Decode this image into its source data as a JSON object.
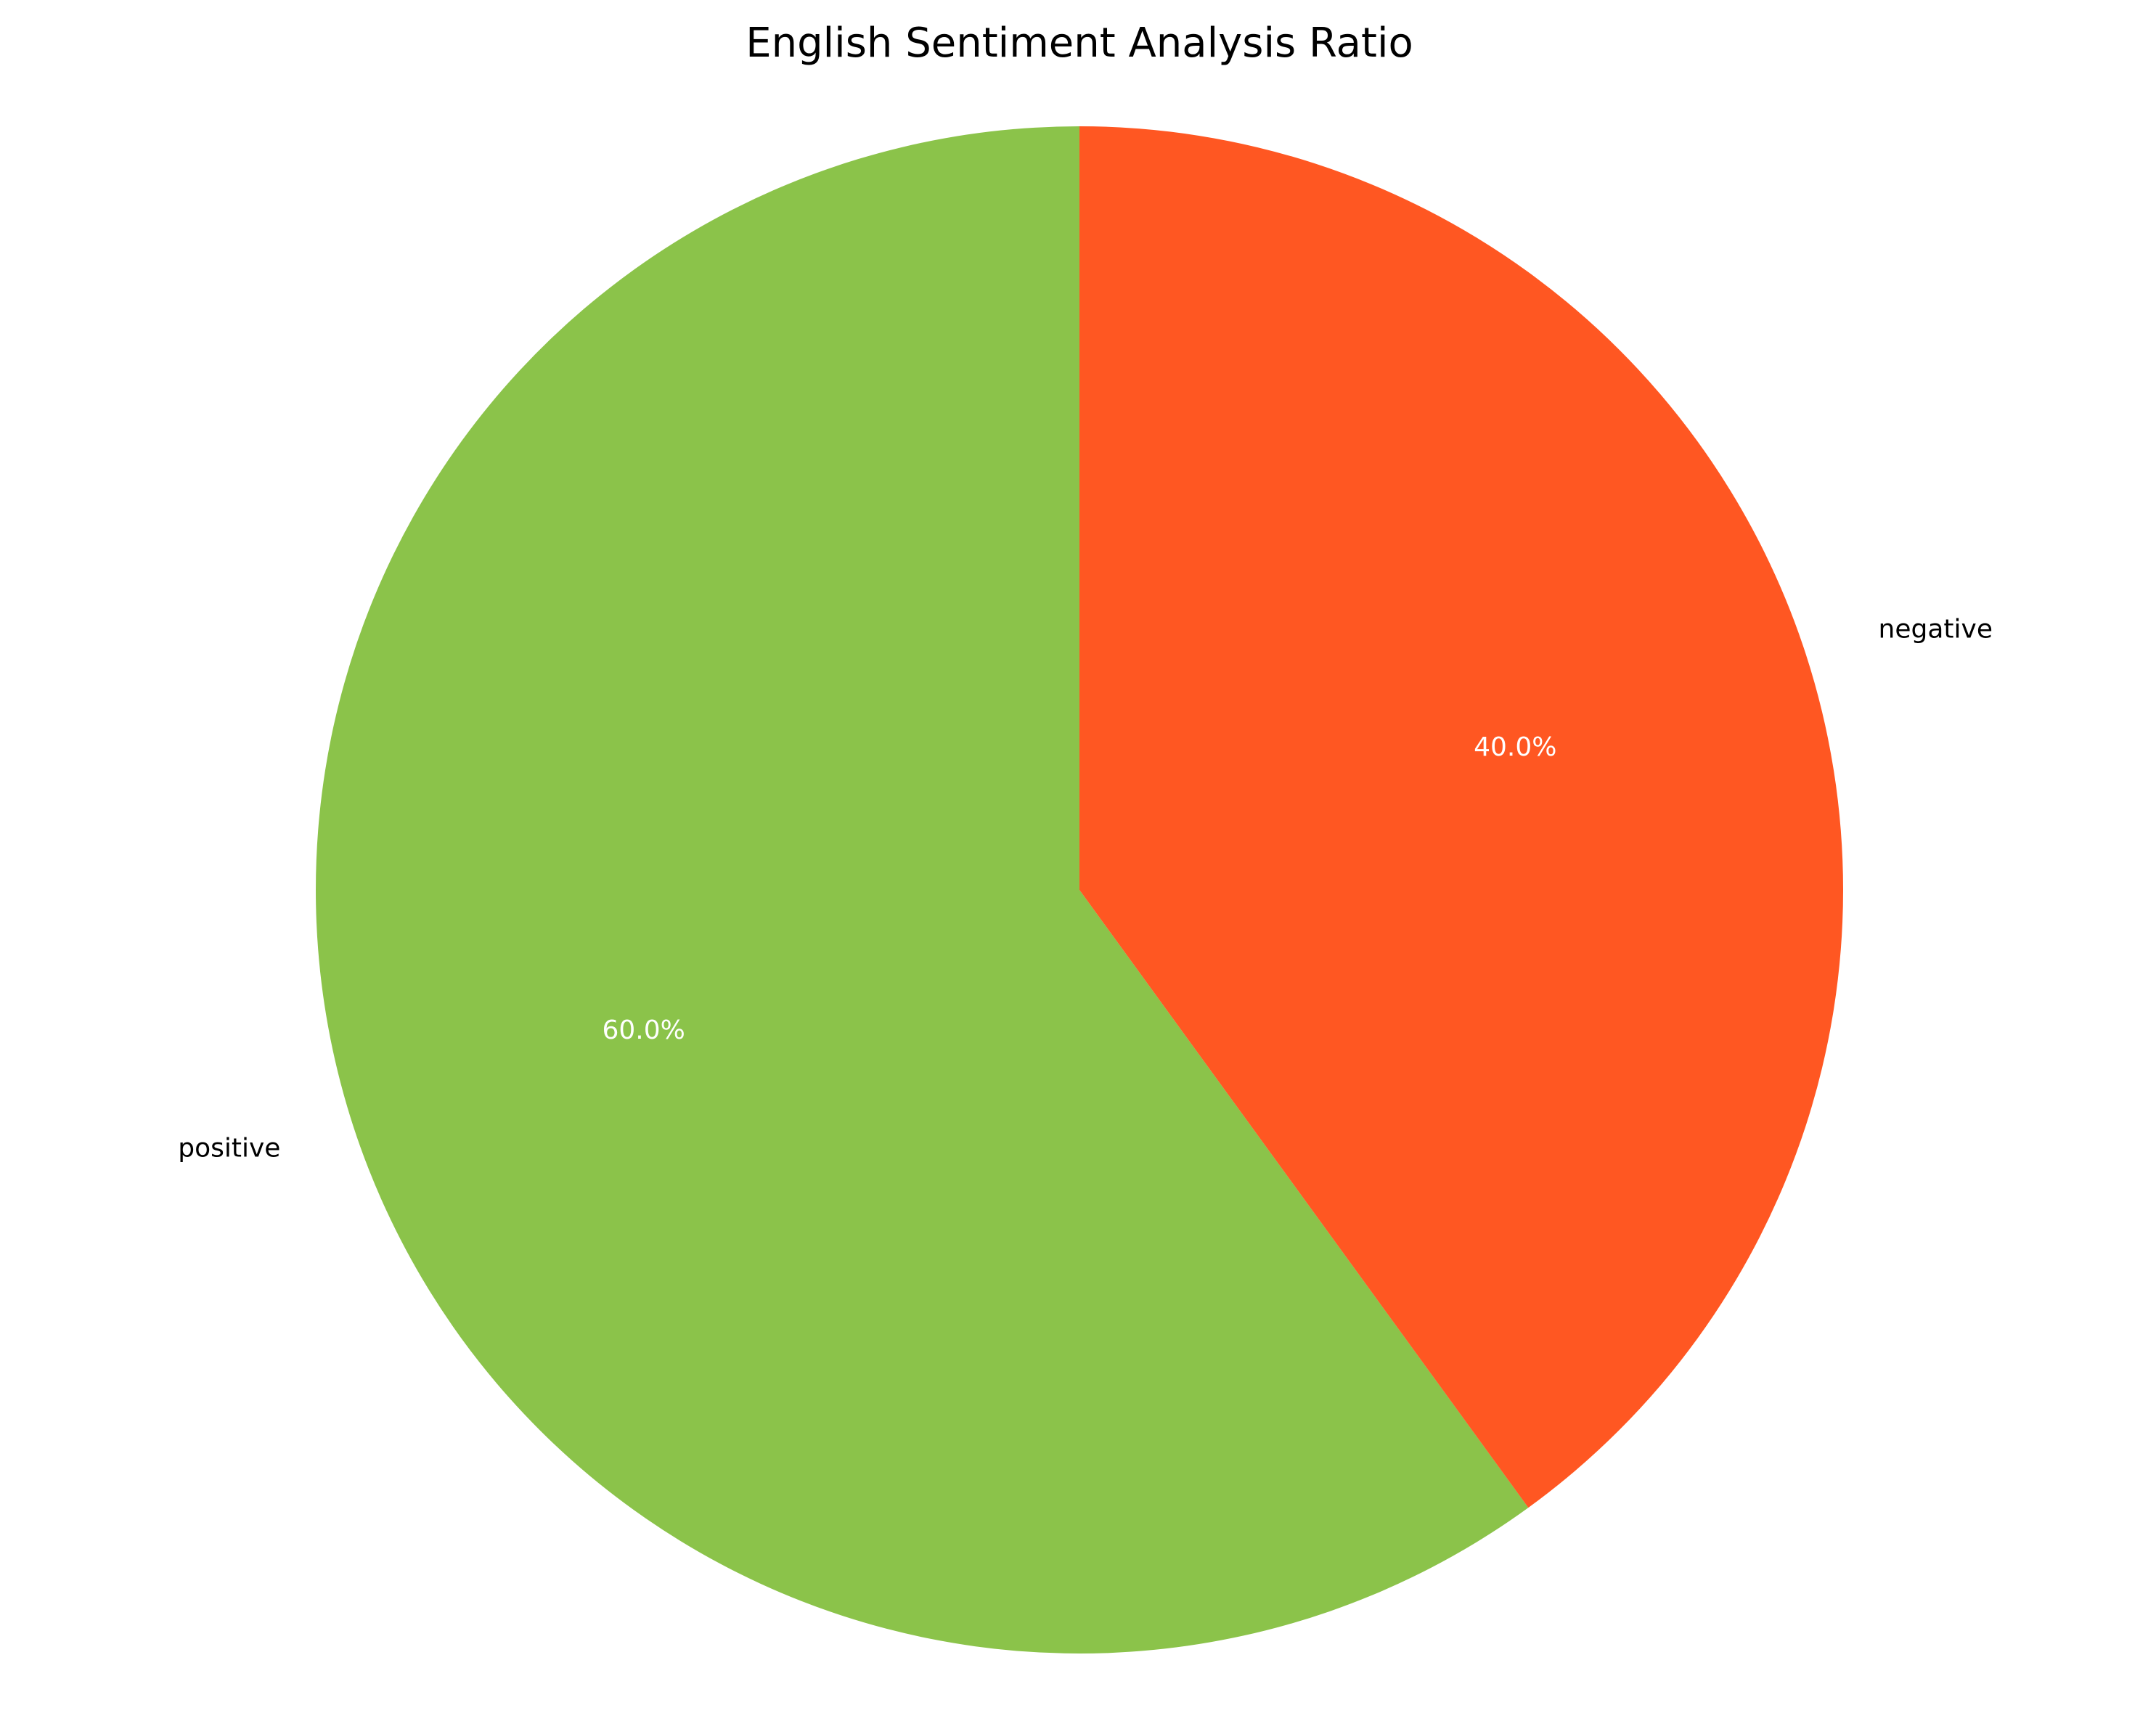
{
  "chart_data": {
    "type": "pie",
    "title": "English Sentiment Analysis Ratio",
    "categories": [
      "positive",
      "negative"
    ],
    "values": [
      60.0,
      40.0
    ],
    "percent_labels": [
      "60.0%",
      "40.0%"
    ],
    "colors": [
      "#8BC34A",
      "#FF5722"
    ],
    "start_angle_deg": 90,
    "direction": "counterclockwise",
    "legend": "none"
  }
}
